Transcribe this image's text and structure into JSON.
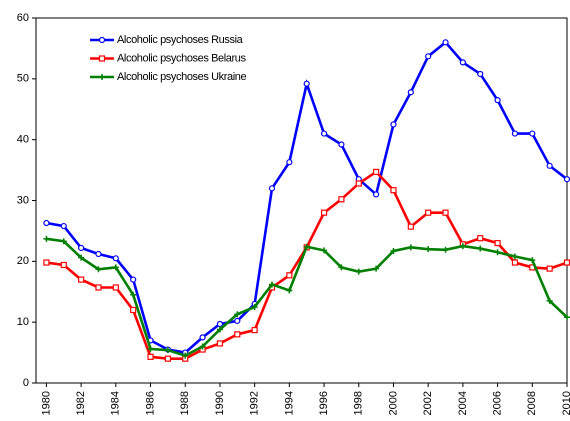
{
  "chart_data": {
    "type": "line",
    "x": [
      1980,
      1981,
      1982,
      1983,
      1984,
      1985,
      1986,
      1987,
      1988,
      1989,
      1990,
      1991,
      1992,
      1993,
      1994,
      1995,
      1996,
      1997,
      1998,
      1999,
      2000,
      2001,
      2002,
      2003,
      2004,
      2005,
      2006,
      2007,
      2008,
      2009,
      2010
    ],
    "series": [
      {
        "name": "Alcoholic psychoses Russia",
        "color": "#0000ff",
        "marker": "circle",
        "values": [
          26.3,
          25.8,
          22.2,
          21.2,
          20.5,
          17,
          7,
          5.5,
          5,
          7.5,
          9.7,
          10.2,
          13,
          32,
          36.3,
          49.2,
          41,
          39.2,
          33.5,
          31,
          42.5,
          47.8,
          53.7,
          56,
          52.7,
          50.8,
          46.5,
          41,
          41,
          35.7,
          33.5
        ]
      },
      {
        "name": "Alcoholic psychoses Belarus",
        "color": "#ff0000",
        "marker": "square",
        "values": [
          19.8,
          19.4,
          17,
          15.7,
          15.7,
          12,
          4.3,
          4,
          4,
          5.5,
          6.5,
          8,
          8.7,
          15.7,
          17.7,
          22.3,
          28,
          30.2,
          32.8,
          34.7,
          31.7,
          25.7,
          28,
          28,
          22.8,
          23.8,
          23,
          19.8,
          19,
          18.8,
          19.8
        ]
      },
      {
        "name": "Alcoholic psychoses Ukraine",
        "color": "#008000",
        "marker": "plus",
        "values": [
          23.7,
          23.3,
          20.6,
          18.7,
          19,
          14.5,
          5.6,
          5.4,
          4.5,
          6,
          8.8,
          11.3,
          12.5,
          16.2,
          15.2,
          22.4,
          21.8,
          19,
          18.3,
          18.8,
          21.7,
          22.3,
          22,
          21.9,
          22.5,
          22.1,
          21.5,
          20.8,
          20.2,
          13.5,
          10.8
        ]
      }
    ],
    "xlim": [
      1979.4,
      2010
    ],
    "xticks": [
      1980,
      1982,
      1984,
      1986,
      1988,
      1990,
      1992,
      1994,
      1996,
      1998,
      2000,
      2002,
      2004,
      2006,
      2008,
      2010
    ],
    "ylim": [
      0,
      60
    ],
    "yticks": [
      0,
      10,
      20,
      30,
      40,
      50,
      60
    ],
    "legend": "upper left"
  }
}
